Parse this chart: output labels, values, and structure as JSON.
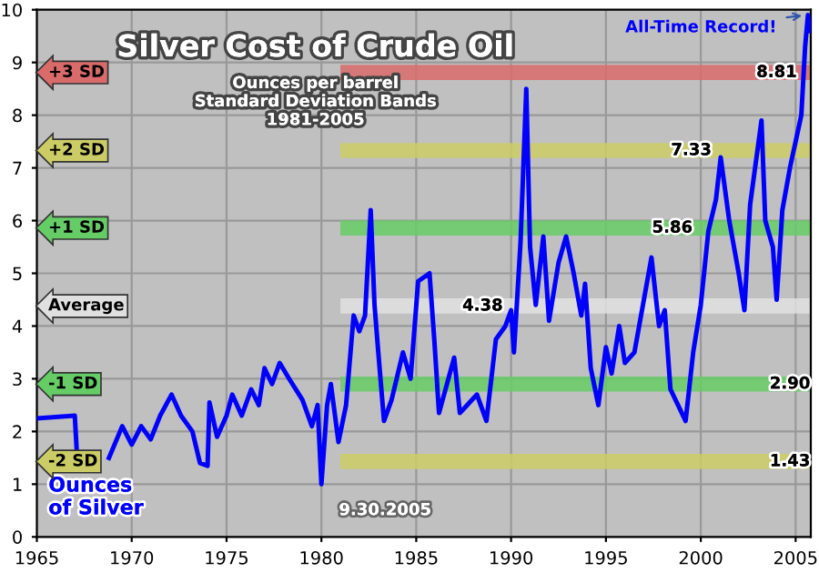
{
  "chart_data": {
    "type": "line",
    "title": "Silver Cost of Crude Oil",
    "subtitle": "Ounces per barrel\nStandard Deviation Bands\n1981-2005",
    "xlim": [
      1965,
      2005.8
    ],
    "xticks": [
      1965,
      1970,
      1975,
      1980,
      1985,
      1990,
      1995,
      2000,
      2005
    ],
    "ylim": [
      0,
      10
    ],
    "yticks": [
      0,
      1,
      2,
      3,
      4,
      5,
      6,
      7,
      8,
      9,
      10
    ],
    "grid": true,
    "legend": false,
    "annotations": [
      {
        "text": "All-Time Record!",
        "x": 2005.6,
        "y": 9.9
      },
      "Ounces\nof Silver",
      "9.30.2005",
      {
        "text": "8.81",
        "x": 2004,
        "y": 8.81
      },
      {
        "text": "7.33",
        "x": 1999.5,
        "y": 7.33
      },
      {
        "text": "5.86",
        "x": 1998.5,
        "y": 5.86
      },
      {
        "text": "4.38",
        "x": 1988.5,
        "y": 4.38
      },
      {
        "text": "2.90",
        "x": 2004.7,
        "y": 2.9
      },
      {
        "text": "1.43",
        "x": 2004.7,
        "y": 1.43
      }
    ],
    "series": [
      {
        "color": "#0000ff",
        "x": [
          1965,
          1967.0,
          1967.1,
          1968,
          1968.8,
          1969.5,
          1970.0,
          1970.5,
          1971,
          1971.5,
          1972.1,
          1972.6,
          1973.2,
          1973.6,
          1974.0,
          1974.1,
          1974.5,
          1975.0,
          1975.3,
          1975.8,
          1976.3,
          1976.7,
          1977.0,
          1977.4,
          1977.8,
          1978.3,
          1979.0,
          1979.5,
          1979.8,
          1980.0,
          1980.3,
          1980.5,
          1980.9,
          1981.3,
          1981.7,
          1982.0,
          1982.3,
          1982.6,
          1982.8,
          1983.0,
          1983.3,
          1983.7,
          1984.3,
          1984.7,
          1985.1,
          1985.7,
          1985.95,
          1986.2,
          1987.0,
          1987.3,
          1988.2,
          1988.7,
          1989.2,
          1989.7,
          1990.0,
          1990.15,
          1990.5,
          1990.8,
          1991.0,
          1991.3,
          1991.7,
          1992.0,
          1992.5,
          1992.9,
          1993.3,
          1993.7,
          1993.9,
          1994.2,
          1994.6,
          1995.0,
          1995.3,
          1995.7,
          1996.0,
          1996.5,
          1997.0,
          1997.4,
          1997.8,
          1998.1,
          1998.4,
          1998.8,
          1999.2,
          1999.6,
          2000.0,
          2000.4,
          2000.8,
          2001.05,
          2001.5,
          2002.0,
          2002.3,
          2002.6,
          2003.2,
          2003.4,
          2003.8,
          2004.0,
          2004.3,
          2004.7,
          2005.0,
          2005.3,
          2005.5,
          2005.65,
          2005.75
        ],
        "values": [
          2.25,
          2.3,
          1.65,
          null,
          1.5,
          2.1,
          1.75,
          2.1,
          1.85,
          2.3,
          2.7,
          2.3,
          2.0,
          1.4,
          1.35,
          2.55,
          1.9,
          2.3,
          2.7,
          2.3,
          2.8,
          2.5,
          3.2,
          2.9,
          3.3,
          3.0,
          2.6,
          2.1,
          2.5,
          1.0,
          2.5,
          2.9,
          1.8,
          2.5,
          4.2,
          3.9,
          4.2,
          6.2,
          4.4,
          3.5,
          2.2,
          2.6,
          3.5,
          3.0,
          4.85,
          5.0,
          3.75,
          2.35,
          3.4,
          2.35,
          2.7,
          2.2,
          3.75,
          4.0,
          4.3,
          3.5,
          5.6,
          8.5,
          5.5,
          4.4,
          5.7,
          4.1,
          5.2,
          5.7,
          5.0,
          4.2,
          4.8,
          3.2,
          2.5,
          3.6,
          3.1,
          4.0,
          3.3,
          3.5,
          4.5,
          5.3,
          4.0,
          4.3,
          2.8,
          2.5,
          2.2,
          3.5,
          4.4,
          5.8,
          6.4,
          7.2,
          6.0,
          5.0,
          4.3,
          6.3,
          7.9,
          6.0,
          5.5,
          4.5,
          6.2,
          7.0,
          7.5,
          8.0,
          9.3,
          9.9,
          9.6
        ]
      },
      {
        "name": "+3 SD",
        "color": "#d96b6b",
        "x": [
          1981,
          2005.8
        ],
        "values": [
          8.81,
          8.81
        ]
      },
      {
        "name": "+2 SD",
        "color": "#cccc66",
        "x": [
          1981,
          2005.8
        ],
        "values": [
          7.33,
          7.33
        ]
      },
      {
        "name": "+1 SD",
        "color": "#66cc66",
        "x": [
          1981,
          2005.8
        ],
        "values": [
          5.86,
          5.86
        ]
      },
      {
        "name": "Average",
        "color": "#e0e0e0",
        "x": [
          1981,
          2005.8
        ],
        "values": [
          4.38,
          4.38
        ]
      },
      {
        "name": "-1 SD",
        "color": "#66cc66",
        "x": [
          1981,
          2005.8
        ],
        "values": [
          2.9,
          2.9
        ]
      },
      {
        "name": "-2 SD",
        "color": "#cccc66",
        "x": [
          1981,
          2005.8
        ],
        "values": [
          1.43,
          1.43
        ]
      }
    ]
  }
}
